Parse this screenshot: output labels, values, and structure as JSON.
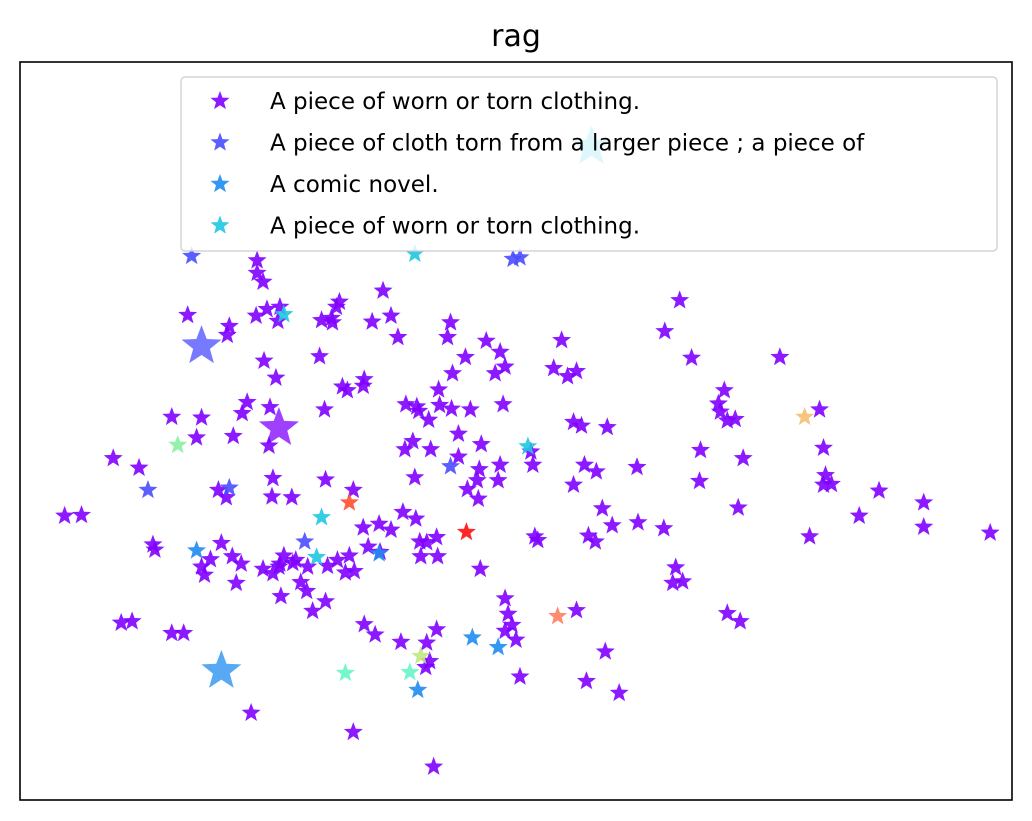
{
  "chart_data": {
    "type": "scatter",
    "title": "rag",
    "xlabel": "",
    "ylabel": "",
    "xlim": [
      0,
      100
    ],
    "ylim": [
      0,
      100
    ],
    "grid": false,
    "axis_ticks": false,
    "marker": "star",
    "legend": {
      "placement": "top-right",
      "entries": [
        {
          "label": "A piece of worn or torn clothing.",
          "color": "#8000ff"
        },
        {
          "label": "A piece of cloth torn from a larger piece ; a piece of",
          "color": "#4a4cff"
        },
        {
          "label": "A comic novel.",
          "color": "#1f8cf0"
        },
        {
          "label": "A piece of worn or torn clothing.",
          "color": "#1ec8e0"
        }
      ]
    },
    "series": [
      {
        "color": "#8000ff",
        "size": "normal",
        "points": [
          [
            4.5,
            38.5
          ],
          [
            9.4,
            46.3
          ],
          [
            12.0,
            45.0
          ],
          [
            10.2,
            24.0
          ],
          [
            13.4,
            34.6
          ],
          [
            13.6,
            33.9
          ],
          [
            15.3,
            22.6
          ],
          [
            18.3,
            31.6
          ],
          [
            18.6,
            30.5
          ],
          [
            15.3,
            51.9
          ],
          [
            17.8,
            49.1
          ],
          [
            18.3,
            51.8
          ],
          [
            16.9,
            65.7
          ],
          [
            20.9,
            63.0
          ],
          [
            21.1,
            64.2
          ],
          [
            22.4,
            52.4
          ],
          [
            21.5,
            49.3
          ],
          [
            20.8,
            41.0
          ],
          [
            21.4,
            33.0
          ],
          [
            21.8,
            29.4
          ],
          [
            22.3,
            32.0
          ],
          [
            23.9,
            73.1
          ],
          [
            23.9,
            71.4
          ],
          [
            24.5,
            70.2
          ],
          [
            23.8,
            65.6
          ],
          [
            24.9,
            66.5
          ],
          [
            26.2,
            66.8
          ],
          [
            26.0,
            64.9
          ],
          [
            25.2,
            53.2
          ],
          [
            25.1,
            48.0
          ],
          [
            24.6,
            59.5
          ],
          [
            25.8,
            57.2
          ],
          [
            22.9,
            53.9
          ],
          [
            27.4,
            41.0
          ],
          [
            25.5,
            30.7
          ],
          [
            26.2,
            32.0
          ],
          [
            26.6,
            33.1
          ],
          [
            27.5,
            32.1
          ],
          [
            26.3,
            27.6
          ],
          [
            26.1,
            31.6
          ],
          [
            28.3,
            29.5
          ],
          [
            28.9,
            28.3
          ],
          [
            29.0,
            31.6
          ],
          [
            30.2,
            60.1
          ],
          [
            30.4,
            65.0
          ],
          [
            31.4,
            65.3
          ],
          [
            31.9,
            66.8
          ],
          [
            31.5,
            64.7
          ],
          [
            32.2,
            67.5
          ],
          [
            30.7,
            52.9
          ],
          [
            32.5,
            56.0
          ],
          [
            33.0,
            55.5
          ],
          [
            34.7,
            57.0
          ],
          [
            33.6,
            42.0
          ],
          [
            34.6,
            56.1
          ],
          [
            32.8,
            30.8
          ],
          [
            32.0,
            32.5
          ],
          [
            33.7,
            31.0
          ],
          [
            34.6,
            36.9
          ],
          [
            36.2,
            37.4
          ],
          [
            35.5,
            64.8
          ],
          [
            36.6,
            69.0
          ],
          [
            38.1,
            62.7
          ],
          [
            38.9,
            53.6
          ],
          [
            40.0,
            53.3
          ],
          [
            38.8,
            47.5
          ],
          [
            39.6,
            48.6
          ],
          [
            39.8,
            43.7
          ],
          [
            38.6,
            39.0
          ],
          [
            39.9,
            38.1
          ],
          [
            40.3,
            35.0
          ],
          [
            40.4,
            33.0
          ],
          [
            40.2,
            52.7
          ],
          [
            41.2,
            51.5
          ],
          [
            41.4,
            47.5
          ],
          [
            42.3,
            53.5
          ],
          [
            42.2,
            55.6
          ],
          [
            43.5,
            53.0
          ],
          [
            43.1,
            62.7
          ],
          [
            43.4,
            64.7
          ],
          [
            44.9,
            60.0
          ],
          [
            43.6,
            57.8
          ],
          [
            44.2,
            49.6
          ],
          [
            45.4,
            52.9
          ],
          [
            46.5,
            48.2
          ],
          [
            46.3,
            44.8
          ],
          [
            45.1,
            42.1
          ],
          [
            46.2,
            40.8
          ],
          [
            47.0,
            62.2
          ],
          [
            48.4,
            60.7
          ],
          [
            48.9,
            58.7
          ],
          [
            48.7,
            53.6
          ],
          [
            48.2,
            43.3
          ],
          [
            46.4,
            31.3
          ],
          [
            48.9,
            27.3
          ],
          [
            49.2,
            25.2
          ],
          [
            47.9,
            57.8
          ],
          [
            48.4,
            45.4
          ],
          [
            49.6,
            23.7
          ],
          [
            51.5,
            47.2
          ],
          [
            51.7,
            45.4
          ],
          [
            51.9,
            35.7
          ],
          [
            52.2,
            35.2
          ],
          [
            53.8,
            58.5
          ],
          [
            54.6,
            62.3
          ],
          [
            55.2,
            57.4
          ],
          [
            55.8,
            51.2
          ],
          [
            56.1,
            58.1
          ],
          [
            57.3,
            35.8
          ],
          [
            58.0,
            35.0
          ],
          [
            59.7,
            37.2
          ],
          [
            62.3,
            37.6
          ],
          [
            64.9,
            36.8
          ],
          [
            66.1,
            31.5
          ],
          [
            66.8,
            29.6
          ],
          [
            65.8,
            29.4
          ],
          [
            58.7,
            39.5
          ],
          [
            55.8,
            42.7
          ],
          [
            56.9,
            45.4
          ],
          [
            56.6,
            50.7
          ],
          [
            59.2,
            50.5
          ],
          [
            58.1,
            44.5
          ],
          [
            62.2,
            45.1
          ],
          [
            65.0,
            63.5
          ],
          [
            66.5,
            67.7
          ],
          [
            67.7,
            59.9
          ],
          [
            68.6,
            47.4
          ],
          [
            68.5,
            43.2
          ],
          [
            70.4,
            53.7
          ],
          [
            71.0,
            55.5
          ],
          [
            71.3,
            51.4
          ],
          [
            70.6,
            52.6
          ],
          [
            72.1,
            51.6
          ],
          [
            72.9,
            46.3
          ],
          [
            72.4,
            39.6
          ],
          [
            71.3,
            25.3
          ],
          [
            72.6,
            24.2
          ],
          [
            76.6,
            60.0
          ],
          [
            79.6,
            35.7
          ],
          [
            81.0,
            42.7
          ],
          [
            81.2,
            44.0
          ],
          [
            81.8,
            42.8
          ],
          [
            84.6,
            38.5
          ],
          [
            86.6,
            41.9
          ],
          [
            91.1,
            40.3
          ],
          [
            91.1,
            37.0
          ],
          [
            97.8,
            36.2
          ],
          [
            81.0,
            47.7
          ],
          [
            80.6,
            52.9
          ],
          [
            60.4,
            14.5
          ],
          [
            57.1,
            16.1
          ],
          [
            59.0,
            20.1
          ],
          [
            56.1,
            25.7
          ],
          [
            50.0,
            21.7
          ],
          [
            50.4,
            16.7
          ],
          [
            48.9,
            22.9
          ],
          [
            41.0,
            21.3
          ],
          [
            38.4,
            21.4
          ],
          [
            35.8,
            22.4
          ],
          [
            33.6,
            9.2
          ],
          [
            40.9,
            18.0
          ],
          [
            41.3,
            18.8
          ],
          [
            41.7,
            4.5
          ],
          [
            23.3,
            11.8
          ],
          [
            16.5,
            22.6
          ],
          [
            11.3,
            24.2
          ],
          [
            6.2,
            38.6
          ],
          [
            20.0,
            42.0
          ],
          [
            25.5,
            43.6
          ],
          [
            25.4,
            41.1
          ],
          [
            30.8,
            43.4
          ],
          [
            35.1,
            34.3
          ],
          [
            36.3,
            33.6
          ],
          [
            37.4,
            36.6
          ],
          [
            41.0,
            34.9
          ],
          [
            42.1,
            33.0
          ],
          [
            42.0,
            35.6
          ],
          [
            44.2,
            46.5
          ],
          [
            46.1,
            43.3
          ],
          [
            34.7,
            23.8
          ],
          [
            29.5,
            25.6
          ],
          [
            27.8,
            32.5
          ],
          [
            24.5,
            31.3
          ],
          [
            20.3,
            34.8
          ],
          [
            19.2,
            32.6
          ],
          [
            30.8,
            26.9
          ],
          [
            31.0,
            31.7
          ],
          [
            33.2,
            33.1
          ],
          [
            37.4,
            65.6
          ],
          [
            42.0,
            23.1
          ]
        ]
      },
      {
        "color": "#4a4cff",
        "size": "normal",
        "points": [
          [
            17.3,
            73.7
          ],
          [
            12.9,
            42.0
          ],
          [
            21.1,
            42.3
          ],
          [
            28.7,
            35.0
          ],
          [
            43.4,
            45.2
          ],
          [
            49.7,
            73.3
          ],
          [
            50.4,
            73.5
          ]
        ]
      },
      {
        "color": "#1f8cf0",
        "size": "normal",
        "points": [
          [
            17.8,
            33.8
          ],
          [
            36.2,
            33.4
          ],
          [
            45.6,
            22.0
          ],
          [
            48.2,
            20.7
          ],
          [
            40.1,
            14.9
          ]
        ]
      },
      {
        "color": "#1ec8e0",
        "size": "normal",
        "points": [
          [
            26.6,
            65.8
          ],
          [
            39.8,
            74.0
          ],
          [
            51.2,
            47.9
          ],
          [
            30.4,
            38.3
          ],
          [
            29.9,
            32.9
          ]
        ]
      },
      {
        "color": "#66f5c8",
        "size": "normal",
        "points": [
          [
            32.8,
            17.2
          ],
          [
            39.3,
            17.3
          ]
        ]
      },
      {
        "color": "#88f0a0",
        "size": "normal",
        "points": [
          [
            15.9,
            48.1
          ]
        ]
      },
      {
        "color": "#c0e880",
        "size": "normal",
        "points": [
          [
            40.4,
            19.5
          ]
        ]
      },
      {
        "color": "#f5c070",
        "size": "normal",
        "points": [
          [
            79.1,
            51.9
          ]
        ]
      },
      {
        "color": "#ff8060",
        "size": "normal",
        "points": [
          [
            54.2,
            24.9
          ]
        ]
      },
      {
        "color": "#ff5030",
        "size": "normal",
        "points": [
          [
            33.2,
            40.3
          ]
        ]
      },
      {
        "color": "#ff1010",
        "size": "normal",
        "points": [
          [
            45.0,
            36.3
          ]
        ]
      },
      {
        "color": "#4a4cff",
        "size": "large",
        "points": [
          [
            18.3,
            61.5
          ]
        ]
      },
      {
        "color": "#8000ff",
        "size": "large",
        "points": [
          [
            26.1,
            50.4
          ]
        ]
      },
      {
        "color": "#1f8cf0",
        "size": "large",
        "points": [
          [
            20.3,
            17.5
          ]
        ]
      },
      {
        "color": "#1ec8e0",
        "size": "large",
        "points": [
          [
            57.6,
            88.5
          ]
        ]
      }
    ]
  }
}
